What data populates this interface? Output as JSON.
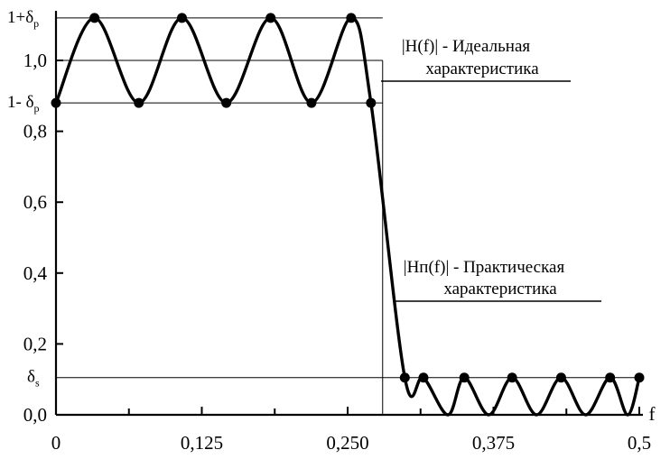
{
  "chart_data": {
    "type": "line",
    "title": "",
    "xlabel": "f",
    "ylabel": "",
    "xlim": [
      0,
      0.5
    ],
    "ylim": [
      0,
      1.1
    ],
    "x_ticks": [
      {
        "value": 0,
        "label": "0"
      },
      {
        "value": 0.125,
        "label": "0,125"
      },
      {
        "value": 0.25,
        "label": "0,250"
      },
      {
        "value": 0.375,
        "label": "0,375"
      },
      {
        "value": 0.5,
        "label": "0,5"
      }
    ],
    "y_ticks": [
      {
        "value": 0.0,
        "label": "0,0"
      },
      {
        "value": 0.2,
        "label": "0,2"
      },
      {
        "value": 0.4,
        "label": "0,4"
      },
      {
        "value": 0.6,
        "label": "0,6"
      },
      {
        "value": 0.8,
        "label": "0,8"
      },
      {
        "value": 1.0,
        "label": "1,0"
      }
    ],
    "ref_levels": [
      {
        "name": "upper",
        "value": 1.12,
        "label_main": "1+δ",
        "label_sub": "p"
      },
      {
        "name": "lower",
        "value": 0.88,
        "label_main": "1- δ",
        "label_sub": "p"
      },
      {
        "name": "stop",
        "value": 0.105,
        "label_main": "δ",
        "label_sub": "s"
      }
    ],
    "ideal": {
      "name": "|H(f)| - Идеальная характеристика",
      "cutoff": 0.28,
      "passband_level": 1.0
    },
    "series": [
      {
        "name": "|Hп(f)| - Практическая характеристика",
        "points": [
          [
            0.0,
            0.88
          ],
          [
            0.033,
            1.12
          ],
          [
            0.071,
            0.88
          ],
          [
            0.108,
            1.12
          ],
          [
            0.146,
            0.88
          ],
          [
            0.184,
            1.12
          ],
          [
            0.219,
            0.88
          ],
          [
            0.253,
            1.12
          ],
          [
            0.27,
            0.88
          ],
          [
            0.299,
            0.105
          ],
          [
            0.315,
            0.105
          ],
          [
            0.336,
            0.0
          ],
          [
            0.35,
            0.105
          ],
          [
            0.371,
            0.0
          ],
          [
            0.391,
            0.105
          ],
          [
            0.412,
            0.0
          ],
          [
            0.433,
            0.105
          ],
          [
            0.454,
            0.0
          ],
          [
            0.475,
            0.105
          ],
          [
            0.49,
            0.0
          ],
          [
            0.5,
            0.105
          ]
        ]
      }
    ],
    "annotations": [
      {
        "name": "ideal-label",
        "lines": [
          "|H(f)|  -  Идеальная",
          "характеристика"
        ]
      },
      {
        "name": "practical-label",
        "lines": [
          "|Hп(f)| - Практическая",
          "характеристика"
        ]
      }
    ]
  }
}
